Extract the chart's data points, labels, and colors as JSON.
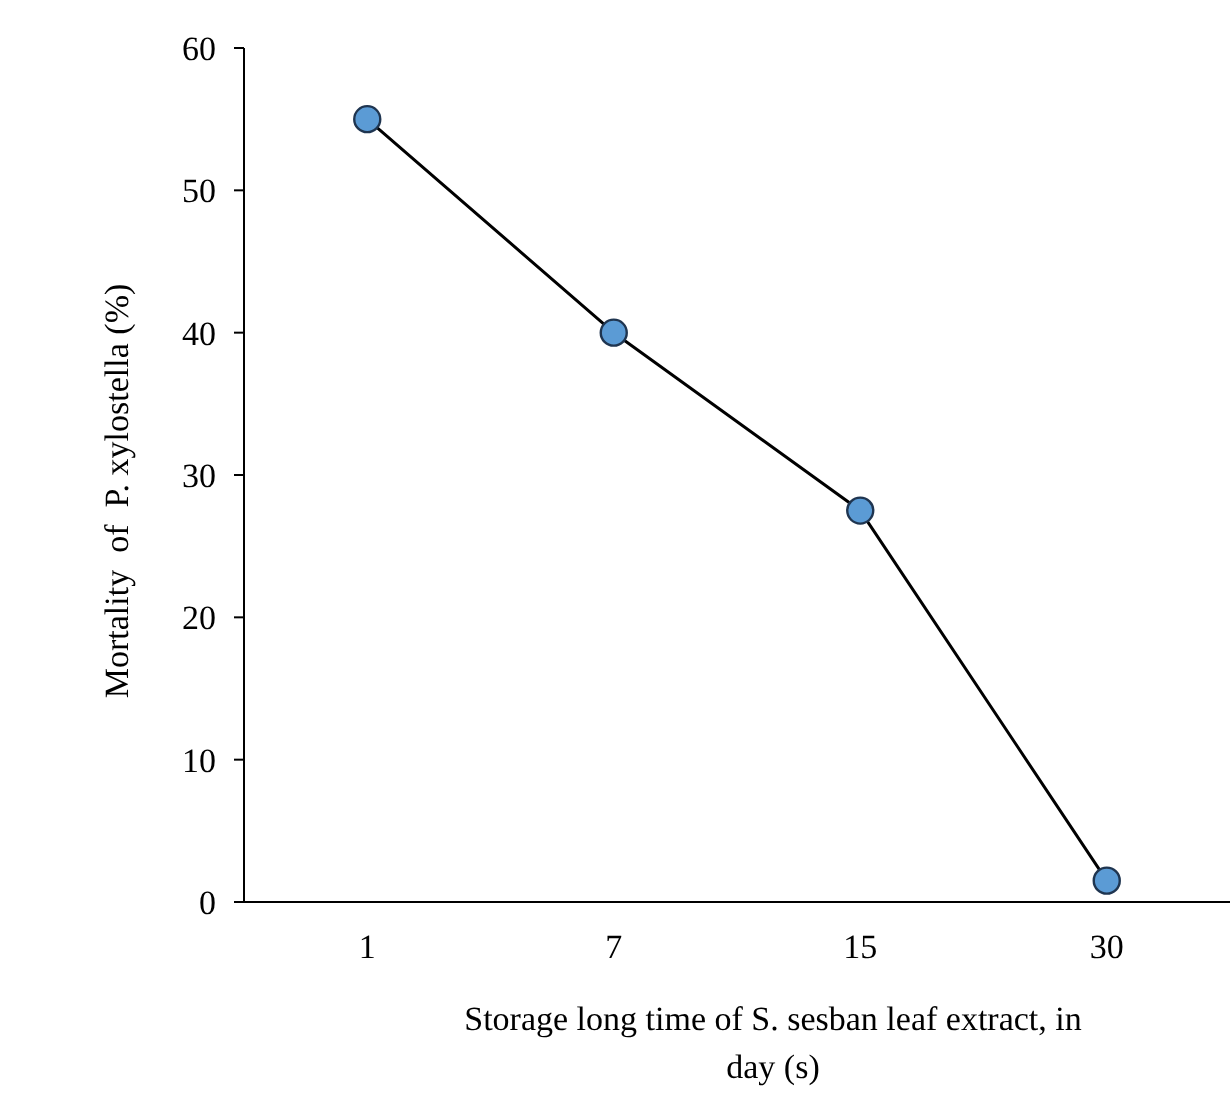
{
  "chart_data": {
    "type": "line",
    "xlabel": "Storage long time of S. sesban leaf extract, in day (s)",
    "ylabel": "Mortality  of  P. xylostella (%)",
    "categories": [
      "1",
      "7",
      "15",
      "30"
    ],
    "series": [
      {
        "color": "#5b9bd5",
        "values": [
          55,
          40,
          27.5,
          1.5
        ]
      }
    ],
    "ylim": [
      0,
      60
    ],
    "yticks": [
      0,
      10,
      20,
      30,
      40,
      50,
      60
    ],
    "grid": false,
    "marker": "circle",
    "line_style": "solid"
  }
}
